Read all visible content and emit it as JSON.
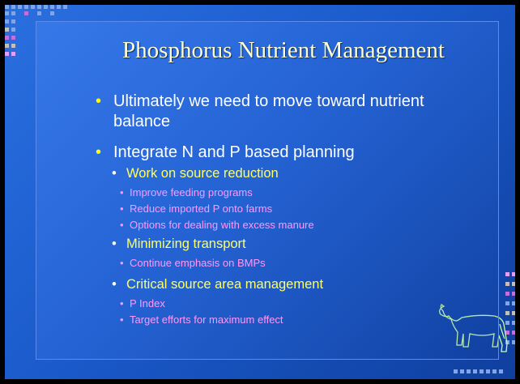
{
  "title": "Phosphorus Nutrient Management",
  "bullets": [
    {
      "text": "Ultimately we need to move toward nutrient balance",
      "children": []
    },
    {
      "text": "Integrate N and P based planning",
      "children": [
        {
          "text": "Work on source reduction",
          "children": [
            {
              "text": "Improve feeding programs"
            },
            {
              "text": "Reduce imported P onto farms"
            },
            {
              "text": "Options for dealing with excess manure"
            }
          ]
        },
        {
          "text": "Minimizing transport",
          "children": [
            {
              "text": "Continue emphasis on BMPs"
            }
          ]
        },
        {
          "text": "Critical source area management",
          "children": [
            {
              "text": "P Index"
            },
            {
              "text": "Target efforts for maximum effect"
            }
          ]
        }
      ]
    }
  ]
}
